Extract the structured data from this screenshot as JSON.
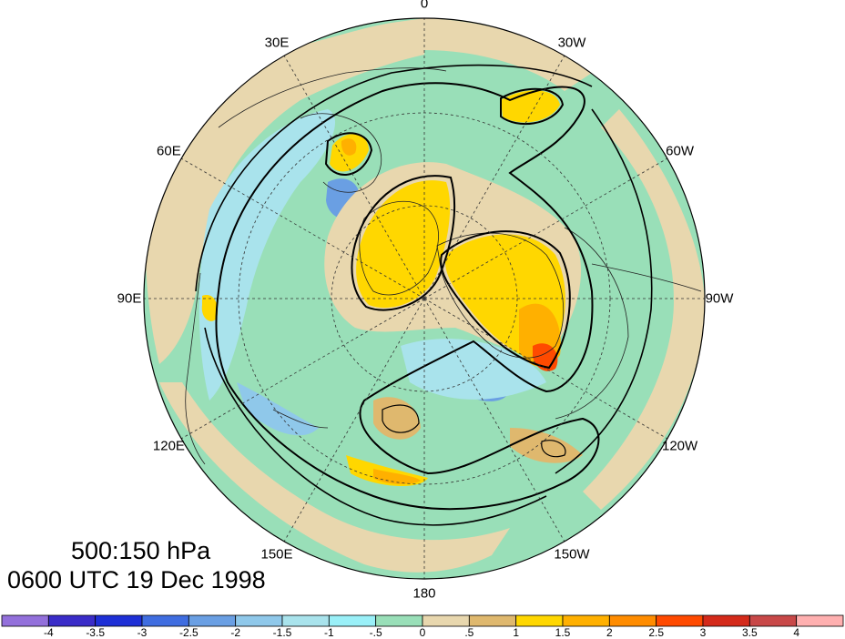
{
  "caption": {
    "levels": "500:150 hPa",
    "time": "0600 UTC 19 Dec 1998"
  },
  "longitude_labels": [
    {
      "text": "0",
      "lon": 0
    },
    {
      "text": "30W",
      "lon": -30
    },
    {
      "text": "60W",
      "lon": -60
    },
    {
      "text": "90W",
      "lon": -90
    },
    {
      "text": "120W",
      "lon": -120
    },
    {
      "text": "150W",
      "lon": -150
    },
    {
      "text": "180",
      "lon": 180
    },
    {
      "text": "150E",
      "lon": 150
    },
    {
      "text": "120E",
      "lon": 120
    },
    {
      "text": "90E",
      "lon": 90
    },
    {
      "text": "60E",
      "lon": 60
    },
    {
      "text": "30E",
      "lon": 30
    }
  ],
  "colorbar": {
    "labels": [
      "-4",
      "-3.5",
      "-3",
      "-2.5",
      "-2",
      "-1.5",
      "-1",
      "-.5",
      "0",
      ".5",
      "1",
      "1.5",
      "2",
      "2.5",
      "3",
      "3.5",
      "4"
    ],
    "colors": [
      "#9370db",
      "#3a2cc8",
      "#1e2fd6",
      "#3f6de0",
      "#6a9fe3",
      "#8fc8ea",
      "#a9e3ec",
      "#9af0f8",
      "#99dfb8",
      "#e8d7ae",
      "#dfb86e",
      "#ffd700",
      "#ffb000",
      "#ff8c00",
      "#ff4a00",
      "#d42a1a",
      "#c84848",
      "#ffb0b0"
    ]
  },
  "map": {
    "projection": "north polar stereographic",
    "background_color": "#99dfb8",
    "coastline_color": "#222222",
    "contour_color": "#000000",
    "gridline_color": "#333333"
  }
}
